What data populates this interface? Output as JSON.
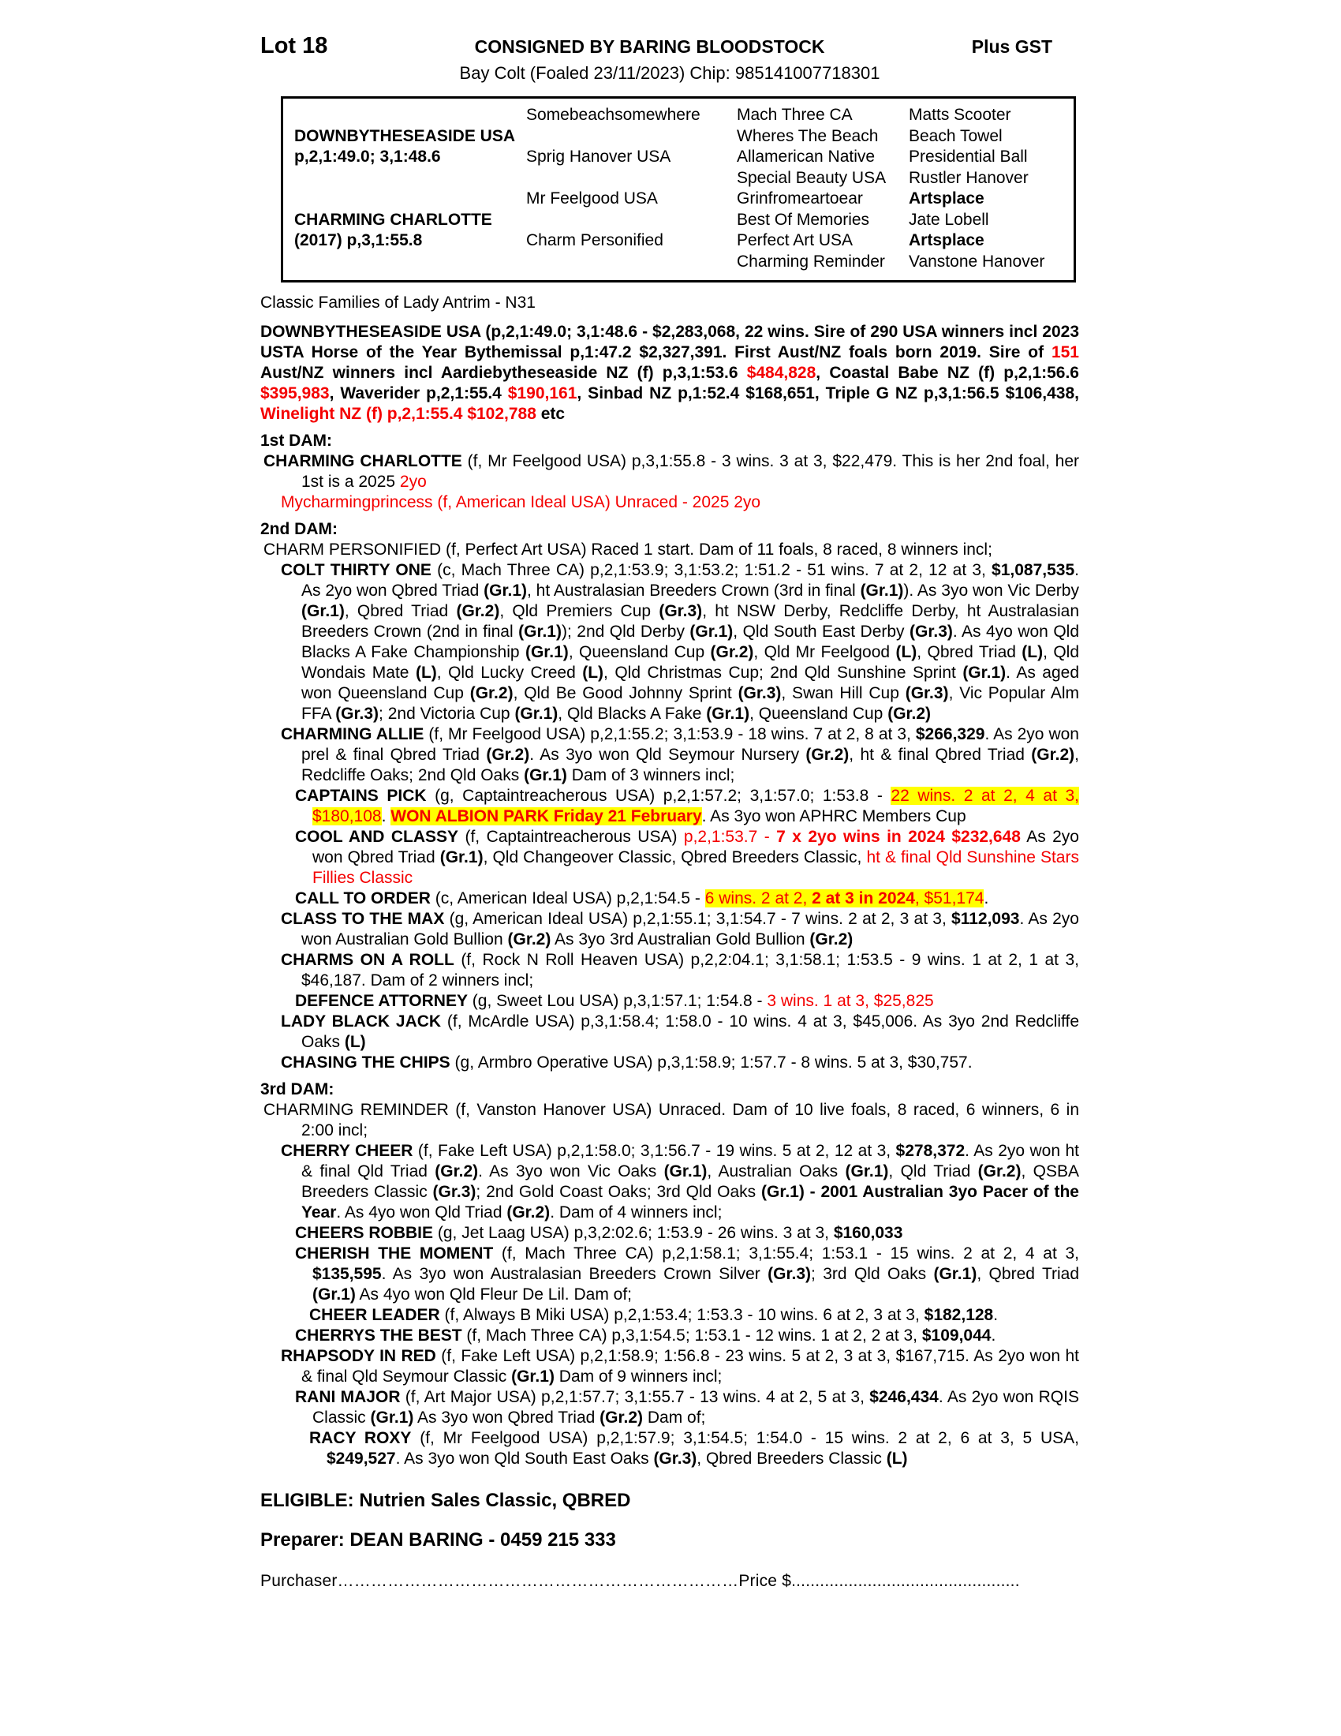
{
  "header": {
    "lot": "Lot 18",
    "consigned": "CONSIGNED BY BARING BLOODSTOCK",
    "gst": "Plus GST",
    "subtitle": "Bay Colt (Foaled 23/11/2023) Chip: 985141007718301"
  },
  "pedigree": {
    "columns": [
      {
        "entries": [
          {
            "row": 2,
            "text": "DOWNBYTHESEASIDE USA",
            "bold": true
          },
          {
            "row": 3,
            "text": "p,2,1:49.0; 3,1:48.6",
            "bold": true
          },
          {
            "row": 6,
            "text": "CHARMING CHARLOTTE",
            "bold": true
          },
          {
            "row": 7,
            "text": "(2017) p,3,1:55.8",
            "bold": true
          }
        ]
      },
      {
        "entries": [
          {
            "row": 1,
            "text": "Somebeachsomewhere"
          },
          {
            "row": 3,
            "text": "Sprig Hanover USA"
          },
          {
            "row": 5,
            "text": "Mr Feelgood USA"
          },
          {
            "row": 7,
            "text": "Charm Personified"
          }
        ]
      },
      {
        "entries": [
          {
            "row": 1,
            "text": "Mach Three CA"
          },
          {
            "row": 2,
            "text": "Wheres The Beach"
          },
          {
            "row": 3,
            "text": "Allamerican Native"
          },
          {
            "row": 4,
            "text": "Special Beauty USA"
          },
          {
            "row": 5,
            "text": "Grinfromeartoear"
          },
          {
            "row": 6,
            "text": "Best Of Memories"
          },
          {
            "row": 7,
            "text": "Perfect Art USA"
          },
          {
            "row": 8,
            "text": "Charming Reminder"
          }
        ]
      },
      {
        "entries": [
          {
            "row": 1,
            "text": "Matts Scooter"
          },
          {
            "row": 2,
            "text": "Beach Towel"
          },
          {
            "row": 3,
            "text": "Presidential Ball"
          },
          {
            "row": 4,
            "text": "Rustler Hanover"
          },
          {
            "row": 5,
            "text": "Artsplace",
            "bold": true
          },
          {
            "row": 6,
            "text": "Jate Lobell"
          },
          {
            "row": 7,
            "text": "Artsplace",
            "bold": true
          },
          {
            "row": 8,
            "text": "Vanstone Hanover"
          }
        ]
      }
    ]
  },
  "family_line": "Classic Families of Lady Antrim - N31",
  "paragraphs": [
    {
      "name": "para-sire",
      "style": "sire",
      "segments": [
        {
          "t": "DOWNBYTHESEASIDE USA (p,2,1:49.0; 3,1:48.6 - $2,283,068, 22 wins. Sire of 290 USA winners incl 2023 USTA Horse of the Year Bythemissal p,1:47.2 $2,327,391. First Aust/NZ foals born 2019. Sire of "
        },
        {
          "t": "151",
          "f": "r"
        },
        {
          "t": " Aust/NZ winners incl Aardiebytheseaside NZ (f) p,3,1:53.6 "
        },
        {
          "t": "$484,828",
          "f": "r"
        },
        {
          "t": ", Coastal Babe NZ (f) p,2,1:56.6 "
        },
        {
          "t": "$395,983",
          "f": "r"
        },
        {
          "t": ", Waverider p,2,1:55.4 "
        },
        {
          "t": "$190,161",
          "f": "r"
        },
        {
          "t": ", Sinbad NZ p,1:52.4 $168,651, Triple G NZ p,3,1:56.5 $106,438, "
        },
        {
          "t": "Winelight NZ (f) p,2,1:55.4 $102,788",
          "f": "r"
        },
        {
          "t": " etc"
        }
      ]
    },
    {
      "name": "heading-1st-dam",
      "style": "h",
      "segments": [
        {
          "t": "1st DAM:",
          "f": "b"
        }
      ]
    },
    {
      "name": "para-charming-charlotte",
      "style": "dam",
      "segments": [
        {
          "t": "CHARMING CHARLOTTE",
          "f": "b"
        },
        {
          "t": " (f, Mr Feelgood USA) p,3,1:55.8 - 3 wins. 3 at 3, $22,479. This is her 2nd foal, her 1st is a 2025 "
        },
        {
          "t": "2yo",
          "f": "r"
        }
      ]
    },
    {
      "name": "para-mycharmingprincess",
      "style": "p1",
      "segments": [
        {
          "t": "Mycharmingprincess (f, American Ideal USA) Unraced - 2025 2yo",
          "f": "r"
        }
      ]
    },
    {
      "name": "heading-2nd-dam",
      "style": "h",
      "segments": [
        {
          "t": "2nd DAM:",
          "f": "b"
        }
      ]
    },
    {
      "name": "para-charm-personified",
      "style": "dam",
      "segments": [
        {
          "t": "CHARM PERSONIFIED (f, Perfect Art USA) Raced 1 start. Dam of 11 foals, 8 raced, 8 winners incl;"
        }
      ]
    },
    {
      "name": "para-colt-thirty-one",
      "style": "p1",
      "segments": [
        {
          "t": "COLT THIRTY ONE",
          "f": "b"
        },
        {
          "t": " (c, Mach Three CA) p,2,1:53.9; 3,1:53.2; 1:51.2 - 51 wins. 7 at 2, 12 at 3, "
        },
        {
          "t": "$1,087,535",
          "f": "b"
        },
        {
          "t": ". As 2yo won Qbred Triad "
        },
        {
          "t": "(Gr.1)",
          "f": "b"
        },
        {
          "t": ", ht Australasian Breeders Crown (3rd in final "
        },
        {
          "t": "(Gr.1)",
          "f": "b"
        },
        {
          "t": "). As 3yo won Vic Derby "
        },
        {
          "t": "(Gr.1)",
          "f": "b"
        },
        {
          "t": ", Qbred Triad "
        },
        {
          "t": "(Gr.2)",
          "f": "b"
        },
        {
          "t": ", Qld Premiers Cup "
        },
        {
          "t": "(Gr.3)",
          "f": "b"
        },
        {
          "t": ", ht NSW Derby, Redcliffe Derby, ht Australasian Breeders Crown (2nd in final "
        },
        {
          "t": "(Gr.1)",
          "f": "b"
        },
        {
          "t": "); 2nd Qld Derby "
        },
        {
          "t": "(Gr.1)",
          "f": "b"
        },
        {
          "t": ", Qld South East Derby "
        },
        {
          "t": "(Gr.3)",
          "f": "b"
        },
        {
          "t": ". As 4yo won Qld Blacks A Fake Championship "
        },
        {
          "t": "(Gr.1)",
          "f": "b"
        },
        {
          "t": ", Queensland Cup "
        },
        {
          "t": "(Gr.2)",
          "f": "b"
        },
        {
          "t": ", Qld Mr Feelgood "
        },
        {
          "t": "(L)",
          "f": "b"
        },
        {
          "t": ", Qbred Triad "
        },
        {
          "t": "(L)",
          "f": "b"
        },
        {
          "t": ", Qld Wondais Mate "
        },
        {
          "t": "(L)",
          "f": "b"
        },
        {
          "t": ", Qld Lucky Creed "
        },
        {
          "t": "(L)",
          "f": "b"
        },
        {
          "t": ", Qld Christmas Cup; 2nd Qld Sunshine Sprint "
        },
        {
          "t": "(Gr.1)",
          "f": "b"
        },
        {
          "t": ". As aged won Queensland Cup "
        },
        {
          "t": "(Gr.2)",
          "f": "b"
        },
        {
          "t": ", Qld Be Good Johnny Sprint "
        },
        {
          "t": "(Gr.3)",
          "f": "b"
        },
        {
          "t": ", Swan Hill Cup "
        },
        {
          "t": "(Gr.3)",
          "f": "b"
        },
        {
          "t": ", Vic Popular Alm FFA "
        },
        {
          "t": "(Gr.3)",
          "f": "b"
        },
        {
          "t": "; 2nd Victoria Cup "
        },
        {
          "t": "(Gr.1)",
          "f": "b"
        },
        {
          "t": ", Qld Blacks A Fake "
        },
        {
          "t": "(Gr.1)",
          "f": "b"
        },
        {
          "t": ", Queensland Cup "
        },
        {
          "t": "(Gr.2)",
          "f": "b"
        }
      ]
    },
    {
      "name": "para-charming-allie",
      "style": "p1",
      "segments": [
        {
          "t": "CHARMING ALLIE",
          "f": "b"
        },
        {
          "t": " (f, Mr Feelgood USA) p,2,1:55.2; 3,1:53.9 - 18 wins. 7 at 2, 8 at 3, "
        },
        {
          "t": "$266,329",
          "f": "b"
        },
        {
          "t": ". As 2yo won prel & final Qbred Triad "
        },
        {
          "t": "(Gr.2)",
          "f": "b"
        },
        {
          "t": ". As 3yo won Qld Seymour Nursery "
        },
        {
          "t": "(Gr.2)",
          "f": "b"
        },
        {
          "t": ", ht & final Qbred Triad "
        },
        {
          "t": "(Gr.2)",
          "f": "b"
        },
        {
          "t": ", Redcliffe Oaks; 2nd Qld Oaks "
        },
        {
          "t": "(Gr.1)",
          "f": "b"
        },
        {
          "t": " Dam of 3 winners incl;"
        }
      ]
    },
    {
      "name": "para-captains-pick",
      "style": "p2",
      "segments": [
        {
          "t": "CAPTAINS PICK",
          "f": "b"
        },
        {
          "t": " (g, Captaintreacherous USA) p,2,1:57.2; 3,1:57.0; 1:53.8 - "
        },
        {
          "t": "22 wins. 2 at 2, 4 at 3, $180,108",
          "f": "rh"
        },
        {
          "t": ". "
        },
        {
          "t": "WON ALBION PARK Friday 21 February",
          "f": "brh"
        },
        {
          "t": ". As 3yo won APHRC Members Cup"
        }
      ]
    },
    {
      "name": "para-cool-and-classy",
      "style": "p2",
      "segments": [
        {
          "t": "COOL AND CLASSY",
          "f": "b"
        },
        {
          "t": " (f, Captaintreacherous USA) "
        },
        {
          "t": "p,2,1:53.7 - ",
          "f": "r"
        },
        {
          "t": "7 x 2yo wins in 2024 $232,648",
          "f": "br"
        },
        {
          "t": " As 2yo won Qbred Triad "
        },
        {
          "t": "(Gr.1)",
          "f": "b"
        },
        {
          "t": ", Qld Changeover Classic, Qbred Breeders Classic, "
        },
        {
          "t": "ht & final Qld Sunshine Stars Fillies Classic",
          "f": "r"
        }
      ]
    },
    {
      "name": "para-call-to-order",
      "style": "p2",
      "segments": [
        {
          "t": "CALL TO ORDER",
          "f": "b"
        },
        {
          "t": " (c, American Ideal USA) p,2,1:54.5 - "
        },
        {
          "t": "6 wins. 2 at 2, ",
          "f": "rh"
        },
        {
          "t": "2 at 3 in 2024",
          "f": "brh"
        },
        {
          "t": ", $51,174",
          "f": "rh"
        },
        {
          "t": "."
        }
      ]
    },
    {
      "name": "para-class-to-the-max",
      "style": "p1",
      "segments": [
        {
          "t": "CLASS TO THE MAX",
          "f": "b"
        },
        {
          "t": " (g, American Ideal USA) p,2,1:55.1; 3,1:54.7 - 7 wins. 2 at 2, 3 at 3, "
        },
        {
          "t": "$112,093",
          "f": "b"
        },
        {
          "t": ". As 2yo won Australian Gold Bullion "
        },
        {
          "t": "(Gr.2)",
          "f": "b"
        },
        {
          "t": " As 3yo 3rd Australian Gold Bullion "
        },
        {
          "t": "(Gr.2)",
          "f": "b"
        }
      ]
    },
    {
      "name": "para-charms-on-a-roll",
      "style": "p1",
      "segments": [
        {
          "t": "CHARMS ON A ROLL",
          "f": "b"
        },
        {
          "t": " (f, Rock N Roll Heaven USA) p,2,2:04.1; 3,1:58.1; 1:53.5 - 9 wins. 1 at 2, 1 at 3, $46,187. Dam of 2 winners incl;"
        }
      ]
    },
    {
      "name": "para-defence-attorney",
      "style": "p2",
      "segments": [
        {
          "t": "DEFENCE ATTORNEY",
          "f": "b"
        },
        {
          "t": " (g, Sweet Lou USA) p,3,1:57.1; 1:54.8 - "
        },
        {
          "t": "3 wins. 1 at 3, $25,825",
          "f": "r"
        }
      ]
    },
    {
      "name": "para-lady-black-jack",
      "style": "p1",
      "segments": [
        {
          "t": "LADY BLACK JACK",
          "f": "b"
        },
        {
          "t": " (f, McArdle USA) p,3,1:58.4; 1:58.0 - 10 wins. 4 at 3, $45,006. As 3yo 2nd Redcliffe Oaks "
        },
        {
          "t": "(L)",
          "f": "b"
        }
      ]
    },
    {
      "name": "para-chasing-the-chips",
      "style": "p1",
      "segments": [
        {
          "t": "CHASING THE CHIPS",
          "f": "b"
        },
        {
          "t": " (g, Armbro Operative USA) p,3,1:58.9; 1:57.7 - 8 wins. 5 at 3, $30,757."
        }
      ]
    },
    {
      "name": "heading-3rd-dam",
      "style": "h",
      "segments": [
        {
          "t": "3rd DAM:",
          "f": "b"
        }
      ]
    },
    {
      "name": "para-charming-reminder",
      "style": "dam",
      "segments": [
        {
          "t": "CHARMING REMINDER (f, Vanston Hanover USA) Unraced. Dam of 10 live foals, 8 raced, 6 winners, 6 in 2:00 incl;"
        }
      ]
    },
    {
      "name": "para-cherry-cheer",
      "style": "p1",
      "segments": [
        {
          "t": "CHERRY CHEER",
          "f": "b"
        },
        {
          "t": " (f, Fake Left USA) p,2,1:58.0; 3,1:56.7 - 19 wins. 5 at 2, 12 at 3, "
        },
        {
          "t": "$278,372",
          "f": "b"
        },
        {
          "t": ". As 2yo won ht & final Qld Triad "
        },
        {
          "t": "(Gr.2)",
          "f": "b"
        },
        {
          "t": ". As 3yo won Vic Oaks "
        },
        {
          "t": "(Gr.1)",
          "f": "b"
        },
        {
          "t": ", Australian Oaks "
        },
        {
          "t": "(Gr.1)",
          "f": "b"
        },
        {
          "t": ", Qld Triad "
        },
        {
          "t": "(Gr.2)",
          "f": "b"
        },
        {
          "t": ", QSBA Breeders Classic "
        },
        {
          "t": "(Gr.3)",
          "f": "b"
        },
        {
          "t": "; 2nd Gold Coast Oaks; 3rd Qld Oaks "
        },
        {
          "t": "(Gr.1) - 2001 Australian 3yo Pacer of the Year",
          "f": "b"
        },
        {
          "t": ". As 4yo won Qld Triad "
        },
        {
          "t": "(Gr.2)",
          "f": "b"
        },
        {
          "t": ". Dam of 4 winners incl;"
        }
      ]
    },
    {
      "name": "para-cheers-robbie",
      "style": "p2",
      "segments": [
        {
          "t": "CHEERS ROBBIE",
          "f": "b"
        },
        {
          "t": " (g, Jet Laag USA) p,3,2:02.6; 1:53.9 - 26 wins. 3 at 3, "
        },
        {
          "t": "$160,033",
          "f": "b"
        }
      ]
    },
    {
      "name": "para-cherish-the-moment",
      "style": "p2",
      "segments": [
        {
          "t": "CHERISH THE MOMENT",
          "f": "b"
        },
        {
          "t": " (f, Mach Three CA) p,2,1:58.1; 3,1:55.4; 1:53.1 - 15 wins. 2 at 2, 4 at 3, "
        },
        {
          "t": "$135,595",
          "f": "b"
        },
        {
          "t": ". As 3yo won Australasian Breeders Crown Silver "
        },
        {
          "t": "(Gr.3)",
          "f": "b"
        },
        {
          "t": "; 3rd Qld Oaks "
        },
        {
          "t": "(Gr.1)",
          "f": "b"
        },
        {
          "t": ", Qbred Triad "
        },
        {
          "t": "(Gr.1)",
          "f": "b"
        },
        {
          "t": " As 4yo won Qld Fleur De Lil. Dam of;"
        }
      ]
    },
    {
      "name": "para-cheer-leader",
      "style": "p3",
      "segments": [
        {
          "t": "CHEER LEADER",
          "f": "b"
        },
        {
          "t": " (f, Always B Miki USA) p,2,1:53.4; 1:53.3 - 10 wins. 6 at 2, 3 at 3, "
        },
        {
          "t": "$182,128",
          "f": "b"
        },
        {
          "t": "."
        }
      ]
    },
    {
      "name": "para-cherrys-the-best",
      "style": "p2",
      "segments": [
        {
          "t": "CHERRYS THE BEST",
          "f": "b"
        },
        {
          "t": " (f, Mach Three CA) p,3,1:54.5; 1:53.1 - 12 wins. 1 at 2, 2 at 3, "
        },
        {
          "t": "$109,044",
          "f": "b"
        },
        {
          "t": "."
        }
      ]
    },
    {
      "name": "para-rhapsody-in-red",
      "style": "p1",
      "segments": [
        {
          "t": "RHAPSODY IN RED",
          "f": "b"
        },
        {
          "t": " (f, Fake Left USA) p,2,1:58.9; 1:56.8 - 23 wins. 5 at 2, 3 at 3, $167,715. As 2yo won ht & final Qld Seymour Classic "
        },
        {
          "t": "(Gr.1)",
          "f": "b"
        },
        {
          "t": " Dam of 9 winners incl;"
        }
      ]
    },
    {
      "name": "para-rani-major",
      "style": "p2",
      "segments": [
        {
          "t": "RANI MAJOR",
          "f": "b"
        },
        {
          "t": " (f, Art Major USA) p,2,1:57.7; 3,1:55.7 - 13 wins. 4 at 2, 5 at 3, "
        },
        {
          "t": "$246,434",
          "f": "b"
        },
        {
          "t": ". As 2yo won RQIS Classic "
        },
        {
          "t": "(Gr.1)",
          "f": "b"
        },
        {
          "t": " As 3yo won Qbred Triad "
        },
        {
          "t": "(Gr.2)",
          "f": "b"
        },
        {
          "t": " Dam of;"
        }
      ]
    },
    {
      "name": "para-racy-roxy",
      "style": "p3",
      "segments": [
        {
          "t": "RACY ROXY",
          "f": "b"
        },
        {
          "t": " (f, Mr Feelgood USA) p,2,1:57.9; 3,1:54.5; 1:54.0 - 15 wins. 2 at 2, 6 at 3, 5 USA, "
        },
        {
          "t": "$249,527",
          "f": "b"
        },
        {
          "t": ". As 3yo won Qld South East Oaks "
        },
        {
          "t": "(Gr.3)",
          "f": "b"
        },
        {
          "t": ", Qbred Breeders Classic "
        },
        {
          "t": "(L)",
          "f": "b"
        }
      ]
    }
  ],
  "footer": {
    "eligible": "ELIGIBLE: Nutrien Sales Classic, QBRED",
    "preparer": "Preparer: DEAN BARING - 0459 215 333",
    "purchaser_label": "Purchaser",
    "purchaser_dots": "………………………………………………………………",
    "price_label": "Price $",
    "price_dots": "................................................"
  },
  "colors": {
    "red": "#f40000",
    "highlight": "#ffff00",
    "text": "#000000"
  }
}
